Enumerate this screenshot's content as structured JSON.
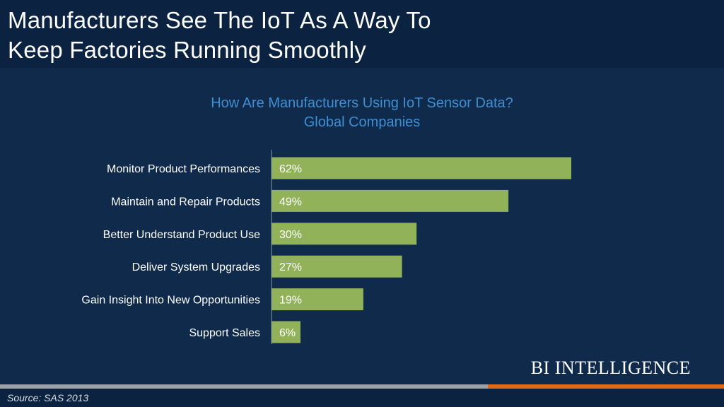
{
  "header": {
    "title_line1": "Manufacturers See The IoT As A Way To",
    "title_line2": "Keep Factories Running Smoothly"
  },
  "chart_data": {
    "type": "bar",
    "orientation": "horizontal",
    "title": "How Are Manufacturers Using IoT Sensor Data?",
    "subtitle": "Global Companies",
    "categories": [
      "Monitor Product Performances",
      "Maintain and Repair Products",
      "Better Understand Product Use",
      "Deliver System Upgrades",
      "Gain Insight Into New Opportunities",
      "Support Sales"
    ],
    "values": [
      62,
      49,
      30,
      27,
      19,
      6
    ],
    "value_labels": [
      "62%",
      "49%",
      "30%",
      "27%",
      "19%",
      "6%"
    ],
    "unit": "%",
    "grid": false,
    "colors": {
      "bar": "#92b25a",
      "axis": "#8a95a3",
      "label": "#ffffff",
      "title": "#3f8fd4"
    }
  },
  "brand": "BI INTELLIGENCE",
  "source": "Source: SAS 2013",
  "colors": {
    "background": "#0f2a4a",
    "header_band": "#0b2340",
    "accent_orange": "#e06a16",
    "accent_grey": "#9aa1a8"
  }
}
